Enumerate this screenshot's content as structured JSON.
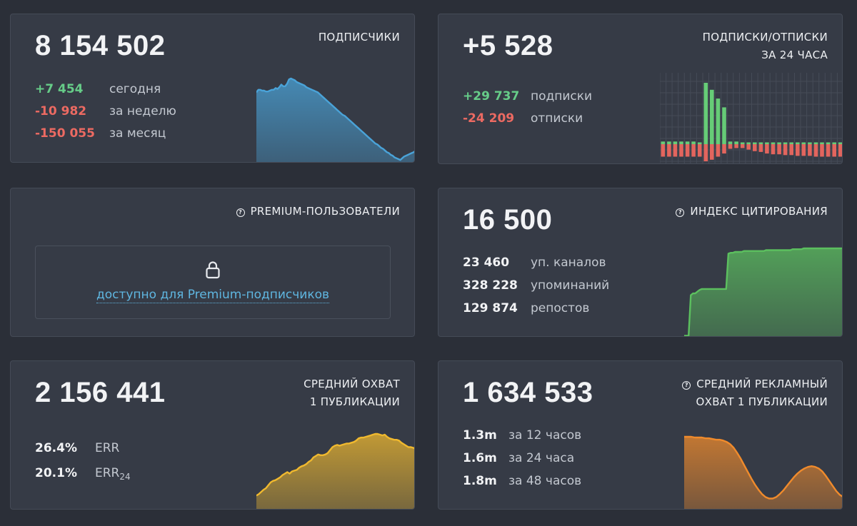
{
  "subscribers": {
    "total": "8 154 502",
    "title": "ПОДПИСЧИКИ",
    "stats": [
      {
        "value": "+7 454",
        "label": "сегодня",
        "tone": "green"
      },
      {
        "value": "-10 982",
        "label": "за неделю",
        "tone": "red"
      },
      {
        "value": "-150 055",
        "label": "за месяц",
        "tone": "red"
      }
    ],
    "chart_data": {
      "type": "area",
      "color": "#4aa3d8",
      "values": [
        82,
        85,
        85,
        84,
        84,
        83,
        83,
        84,
        85,
        85,
        87,
        86,
        88,
        91,
        89,
        89,
        92,
        97,
        98,
        97,
        96,
        94,
        93,
        92,
        91,
        90,
        88,
        87,
        86,
        85,
        84,
        83,
        82,
        80,
        78,
        76,
        74,
        72,
        70,
        68,
        66,
        64,
        62,
        60,
        58,
        56,
        55,
        53,
        51,
        49,
        47,
        45,
        43,
        41,
        39,
        37,
        35,
        33,
        31,
        29,
        27,
        25,
        23,
        22,
        20,
        18,
        17,
        15,
        13,
        12,
        10,
        9,
        7,
        6,
        5,
        4,
        6,
        8,
        9,
        10,
        11,
        12,
        13,
        15
      ]
    }
  },
  "subs_unsubs": {
    "total": "+5 528",
    "title_line1": "ПОДПИСКИ/ОТПИСКИ",
    "title_line2": "ЗА 24 ЧАСА",
    "stats": [
      {
        "value": "+29 737",
        "label": "подписки",
        "tone": "green"
      },
      {
        "value": "-24 209",
        "label": "отписки",
        "tone": "red"
      }
    ],
    "chart_data": {
      "type": "bar",
      "colors": {
        "up": "#66cc77",
        "down": "#e2655e"
      },
      "series": [
        {
          "name": "подписки",
          "values": [
            3,
            3,
            3,
            3,
            3,
            3,
            2,
            70,
            62,
            52,
            42,
            3,
            3,
            2,
            2,
            2,
            2,
            2,
            2,
            2,
            2,
            2,
            2,
            2,
            2,
            2,
            2,
            2,
            2,
            2
          ]
        },
        {
          "name": "отписки",
          "values": [
            -16,
            -16,
            -16,
            -16,
            -16,
            -16,
            -16,
            -22,
            -20,
            -16,
            -12,
            -6,
            -5,
            -5,
            -7,
            -9,
            -10,
            -12,
            -13,
            -13,
            -14,
            -14,
            -15,
            -15,
            -15,
            -16,
            -16,
            -16,
            -16,
            -16
          ]
        }
      ]
    }
  },
  "premium": {
    "title": "PREMIUM-ПОЛЬЗОВАТЕЛИ",
    "lock_icon": "lock-icon",
    "link_text": "доступно для Premium-подписчиков"
  },
  "citation": {
    "total": "16 500",
    "title": "ИНДЕКС ЦИТИРОВАНИЯ",
    "stats": [
      {
        "value": "23 460",
        "label": "уп. каналов"
      },
      {
        "value": "328 228",
        "label": "упоминаний"
      },
      {
        "value": "129 874",
        "label": "репостов"
      }
    ],
    "chart_data": {
      "type": "area",
      "color": "#5cc05f",
      "values": [
        2,
        2,
        2,
        48,
        50,
        50,
        52,
        54,
        55,
        55,
        55,
        55,
        55,
        55,
        55,
        55,
        55,
        55,
        55,
        55,
        95,
        96,
        96,
        97,
        97,
        97,
        97,
        98,
        98,
        98,
        98,
        98,
        98,
        98,
        98,
        98,
        98,
        99,
        99,
        99,
        99,
        99,
        99,
        99,
        99,
        99,
        99,
        99,
        99,
        100,
        100,
        100,
        100,
        100,
        101,
        101,
        101,
        101,
        101,
        101,
        101,
        101,
        101,
        101,
        101,
        101,
        101,
        101,
        101,
        101,
        101,
        101,
        101
      ]
    }
  },
  "reach": {
    "total": "2 156 441",
    "title_line1": "СРЕДНИЙ ОХВАТ",
    "title_line2": "1 ПУБЛИКАЦИИ",
    "err_value": "26.4%",
    "err_label": "ERR",
    "err24_value": "20.1%",
    "err24_label": "ERR",
    "err24_sub": "24",
    "chart_data": {
      "type": "area",
      "color": "#f0b92f",
      "values": [
        20,
        22,
        25,
        28,
        30,
        34,
        38,
        40,
        41,
        43,
        45,
        48,
        50,
        52,
        50,
        53,
        54,
        55,
        58,
        60,
        61,
        63,
        66,
        68,
        72,
        74,
        76,
        75,
        75,
        76,
        78,
        82,
        86,
        88,
        89,
        88,
        89,
        90,
        91,
        91,
        92,
        93,
        95,
        98,
        99,
        99,
        100,
        101,
        102,
        103,
        104,
        104,
        103,
        102,
        103,
        100,
        98,
        97,
        96,
        96,
        95,
        92,
        90,
        88,
        86,
        86,
        85,
        84
      ]
    }
  },
  "ad_reach": {
    "total": "1 634 533",
    "title_line1": "СРЕДНИЙ РЕКЛАМНЫЙ",
    "title_line2": "ОХВАТ 1 ПУБЛИКАЦИИ",
    "stats": [
      {
        "value": "1.3m",
        "label": "за 12 часов"
      },
      {
        "value": "1.6m",
        "label": "за 24 часа"
      },
      {
        "value": "1.8m",
        "label": "за 48 часов"
      }
    ],
    "chart_data": {
      "type": "area",
      "color": "#f08b2c",
      "values": [
        100,
        100,
        100,
        99,
        99,
        99,
        98,
        98,
        97,
        96,
        96,
        95,
        93,
        90,
        85,
        78,
        70,
        61,
        52,
        43,
        35,
        28,
        22,
        18,
        16,
        16,
        18,
        22,
        27,
        33,
        39,
        45,
        50,
        54,
        57,
        59,
        60,
        59,
        57,
        53,
        47,
        40,
        33,
        26,
        21,
        18
      ]
    }
  }
}
